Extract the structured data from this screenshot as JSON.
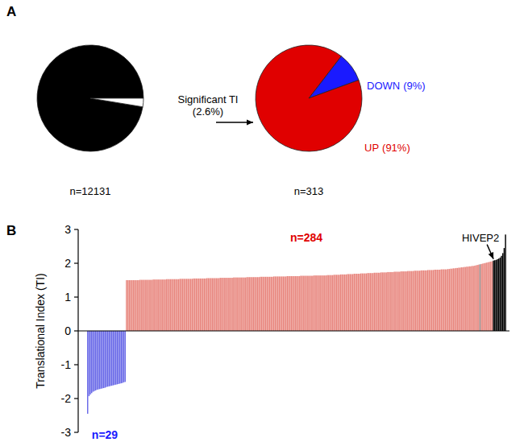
{
  "panel_labels": [
    "A",
    "B"
  ],
  "chart_data": [
    {
      "type": "pie",
      "categories": [
        null,
        "Significant TI"
      ],
      "values": [
        97.4,
        2.6
      ],
      "value_labels": [
        null,
        "(2.6%)"
      ],
      "colors": [
        "#000000",
        "#ffffff"
      ],
      "data_labels": true,
      "annotations": [
        "n=12131"
      ]
    },
    {
      "type": "pie",
      "categories": [
        "DOWN",
        "UP"
      ],
      "values": [
        9,
        91
      ],
      "value_labels": [
        "(9%)",
        "(91%)"
      ],
      "colors": [
        "#1a1aff",
        "#e00000"
      ],
      "data_labels": true,
      "annotations": [
        "n=313"
      ]
    },
    {
      "type": "bar",
      "ylabel": "Translational Index (TI)",
      "ylim": [
        -3,
        3
      ],
      "yticks": [
        -3,
        -2,
        -1,
        0,
        1,
        2,
        3
      ],
      "tick_labels": "y",
      "annotations": [
        {
          "text": "n=284"
        },
        {
          "text": "n=29"
        },
        {
          "text": "HIVEP2",
          "index": 303
        }
      ],
      "values": [
        -2.45,
        -1.93,
        -1.88,
        -1.84,
        -1.8,
        -1.78,
        -1.76,
        -1.74,
        -1.73,
        -1.72,
        -1.71,
        -1.7,
        -1.69,
        -1.68,
        -1.66,
        -1.65,
        -1.64,
        -1.63,
        -1.62,
        -1.61,
        -1.6,
        -1.59,
        -1.58,
        -1.57,
        -1.56,
        -1.55,
        -1.54,
        -1.52,
        -1.51,
        1.5,
        1.5,
        1.5,
        1.5,
        1.5,
        1.5,
        1.5,
        1.5,
        1.5,
        1.5,
        1.51,
        1.51,
        1.51,
        1.51,
        1.51,
        1.51,
        1.51,
        1.51,
        1.51,
        1.51,
        1.52,
        1.52,
        1.52,
        1.52,
        1.52,
        1.52,
        1.52,
        1.52,
        1.52,
        1.52,
        1.53,
        1.53,
        1.53,
        1.53,
        1.53,
        1.53,
        1.53,
        1.53,
        1.53,
        1.53,
        1.54,
        1.54,
        1.54,
        1.54,
        1.54,
        1.54,
        1.54,
        1.54,
        1.54,
        1.54,
        1.55,
        1.55,
        1.55,
        1.55,
        1.55,
        1.55,
        1.55,
        1.55,
        1.55,
        1.55,
        1.56,
        1.56,
        1.56,
        1.56,
        1.56,
        1.56,
        1.56,
        1.56,
        1.56,
        1.56,
        1.57,
        1.57,
        1.57,
        1.57,
        1.57,
        1.57,
        1.57,
        1.57,
        1.57,
        1.57,
        1.58,
        1.58,
        1.58,
        1.58,
        1.58,
        1.58,
        1.58,
        1.58,
        1.58,
        1.58,
        1.59,
        1.59,
        1.59,
        1.59,
        1.59,
        1.59,
        1.59,
        1.59,
        1.59,
        1.59,
        1.6,
        1.6,
        1.6,
        1.6,
        1.6,
        1.6,
        1.6,
        1.6,
        1.6,
        1.6,
        1.61,
        1.61,
        1.61,
        1.61,
        1.61,
        1.61,
        1.61,
        1.61,
        1.61,
        1.61,
        1.62,
        1.62,
        1.62,
        1.62,
        1.62,
        1.62,
        1.62,
        1.62,
        1.62,
        1.62,
        1.63,
        1.63,
        1.63,
        1.63,
        1.63,
        1.63,
        1.63,
        1.63,
        1.63,
        1.63,
        1.64,
        1.64,
        1.64,
        1.64,
        1.64,
        1.64,
        1.64,
        1.64,
        1.64,
        1.64,
        1.65,
        1.65,
        1.65,
        1.65,
        1.65,
        1.66,
        1.66,
        1.66,
        1.66,
        1.66,
        1.67,
        1.67,
        1.67,
        1.67,
        1.67,
        1.68,
        1.68,
        1.68,
        1.68,
        1.68,
        1.69,
        1.69,
        1.69,
        1.69,
        1.69,
        1.7,
        1.7,
        1.7,
        1.7,
        1.7,
        1.71,
        1.71,
        1.71,
        1.71,
        1.71,
        1.72,
        1.72,
        1.72,
        1.72,
        1.72,
        1.73,
        1.73,
        1.73,
        1.73,
        1.73,
        1.74,
        1.74,
        1.74,
        1.74,
        1.74,
        1.75,
        1.75,
        1.75,
        1.75,
        1.75,
        1.76,
        1.76,
        1.76,
        1.76,
        1.76,
        1.77,
        1.77,
        1.77,
        1.77,
        1.77,
        1.78,
        1.78,
        1.78,
        1.78,
        1.78,
        1.79,
        1.79,
        1.79,
        1.79,
        1.79,
        1.8,
        1.8,
        1.8,
        1.8,
        1.8,
        1.81,
        1.81,
        1.81,
        1.81,
        1.81,
        1.82,
        1.82,
        1.82,
        1.82,
        1.82,
        1.83,
        1.83,
        1.84,
        1.84,
        1.85,
        1.85,
        1.86,
        1.86,
        1.87,
        1.87,
        1.88,
        1.88,
        1.89,
        1.89,
        1.9,
        1.9,
        1.91,
        1.91,
        1.92,
        1.92,
        1.93,
        1.94,
        1.95,
        1.96,
        1.97,
        1.98,
        1.99,
        2.0,
        2.01,
        2.02,
        2.03,
        2.04,
        2.05,
        2.06,
        2.08,
        2.09,
        2.1,
        2.12,
        2.14,
        2.17,
        2.22,
        2.3,
        2.45,
        2.85
      ],
      "colors": [
        "#6b6be8",
        "#6b6be8",
        "#6b6be8",
        "#6b6be8",
        "#6b6be8",
        "#6b6be8",
        "#6b6be8",
        "#6b6be8",
        "#6b6be8",
        "#6b6be8",
        "#6b6be8",
        "#6b6be8",
        "#6b6be8",
        "#6b6be8",
        "#6b6be8",
        "#6b6be8",
        "#6b6be8",
        "#6b6be8",
        "#6b6be8",
        "#6b6be8",
        "#6b6be8",
        "#6b6be8",
        "#6b6be8",
        "#6b6be8",
        "#6b6be8",
        "#6b6be8",
        "#6b6be8",
        "#6b6be8",
        "#6b6be8",
        "#e8877f",
        "#e8877f",
        "#e8877f",
        "#e8877f",
        "#e8877f",
        "#e8877f",
        "#e8877f",
        "#e8877f",
        "#e8877f",
        "#e8877f",
        "#e8877f",
        "#e8877f",
        "#e8877f",
        "#e8877f",
        "#e8877f",
        "#e8877f",
        "#e8877f",
        "#e8877f",
        "#e8877f",
        "#e8877f",
        "#e8877f",
        "#e8877f",
        "#e8877f",
        "#e8877f",
        "#e8877f",
        "#e8877f",
        "#e8877f",
        "#e8877f",
        "#e8877f",
        "#e8877f",
        "#e8877f",
        "#e8877f",
        "#e8877f",
        "#e8877f",
        "#e8877f",
        "#e8877f",
        "#e8877f",
        "#e8877f",
        "#e8877f",
        "#e8877f",
        "#e8877f",
        "#e8877f",
        "#e8877f",
        "#e8877f",
        "#e8877f",
        "#e8877f",
        "#e8877f",
        "#e8877f",
        "#e8877f",
        "#e8877f",
        "#e8877f",
        "#e8877f",
        "#e8877f",
        "#e8877f",
        "#e8877f",
        "#e8877f",
        "#e8877f",
        "#e8877f",
        "#e8877f",
        "#e8877f",
        "#e8877f",
        "#e8877f",
        "#e8877f",
        "#e8877f",
        "#e8877f",
        "#e8877f",
        "#e8877f",
        "#e8877f",
        "#e8877f",
        "#e8877f",
        "#e8877f",
        "#e8877f",
        "#e8877f",
        "#e8877f",
        "#e8877f",
        "#e8877f",
        "#e8877f",
        "#e8877f",
        "#e8877f",
        "#e8877f",
        "#e8877f",
        "#e8877f",
        "#e8877f",
        "#e8877f",
        "#e8877f",
        "#e8877f",
        "#e8877f",
        "#e8877f",
        "#e8877f",
        "#e8877f",
        "#e8877f",
        "#e8877f",
        "#e8877f",
        "#e8877f",
        "#e8877f",
        "#e8877f",
        "#e8877f",
        "#e8877f",
        "#e8877f",
        "#e8877f",
        "#e8877f",
        "#e8877f",
        "#e8877f",
        "#e8877f",
        "#e8877f",
        "#e8877f",
        "#e8877f",
        "#e8877f",
        "#e8877f",
        "#e8877f",
        "#e8877f",
        "#e8877f",
        "#e8877f",
        "#e8877f",
        "#e8877f",
        "#e8877f",
        "#e8877f",
        "#e8877f",
        "#e8877f",
        "#e8877f",
        "#e8877f",
        "#e8877f",
        "#e8877f",
        "#e8877f",
        "#e8877f",
        "#e8877f",
        "#e8877f",
        "#e8877f",
        "#e8877f",
        "#e8877f",
        "#e8877f",
        "#e8877f",
        "#e8877f",
        "#e8877f",
        "#e8877f",
        "#e8877f",
        "#e8877f",
        "#e8877f",
        "#e8877f",
        "#e8877f",
        "#e8877f",
        "#e8877f",
        "#e8877f",
        "#e8877f",
        "#e8877f",
        "#e8877f",
        "#e8877f",
        "#e8877f",
        "#e8877f",
        "#e8877f",
        "#e8877f",
        "#e8877f",
        "#e8877f",
        "#e8877f",
        "#e8877f",
        "#e8877f",
        "#e8877f",
        "#e8877f",
        "#e8877f",
        "#e8877f",
        "#e8877f",
        "#e8877f",
        "#e8877f",
        "#e8877f",
        "#e8877f",
        "#e8877f",
        "#e8877f",
        "#e8877f",
        "#e8877f",
        "#e8877f",
        "#e8877f",
        "#e8877f",
        "#e8877f",
        "#e8877f",
        "#e8877f",
        "#e8877f",
        "#e8877f",
        "#e8877f",
        "#e8877f",
        "#e8877f",
        "#e8877f",
        "#e8877f",
        "#e8877f",
        "#e8877f",
        "#e8877f",
        "#e8877f",
        "#e8877f",
        "#e8877f",
        "#e8877f",
        "#e8877f",
        "#e8877f",
        "#e8877f",
        "#e8877f",
        "#e8877f",
        "#e8877f",
        "#e8877f",
        "#e8877f",
        "#e8877f",
        "#e8877f",
        "#e8877f",
        "#e8877f",
        "#e8877f",
        "#e8877f",
        "#e8877f",
        "#e8877f",
        "#e8877f",
        "#e8877f",
        "#e8877f",
        "#e8877f",
        "#e8877f",
        "#e8877f",
        "#e8877f",
        "#e8877f",
        "#e8877f",
        "#e8877f",
        "#e8877f",
        "#e8877f",
        "#e8877f",
        "#e8877f",
        "#e8877f",
        "#e8877f",
        "#e8877f",
        "#e8877f",
        "#e8877f",
        "#e8877f",
        "#e8877f",
        "#e8877f",
        "#e8877f",
        "#e8877f",
        "#e8877f",
        "#e8877f",
        "#e8877f",
        "#e8877f",
        "#e8877f",
        "#e8877f",
        "#e8877f",
        "#e8877f",
        "#e8877f",
        "#e8877f",
        "#e8877f",
        "#e8877f",
        "#e8877f",
        "#e8877f",
        "#e8877f",
        "#e8877f",
        "#e8877f",
        "#e8877f",
        "#e8877f",
        "#e8877f",
        "#e8877f",
        "#e8877f",
        "#e8877f",
        "#e8877f",
        "#e8877f",
        "#e8877f",
        "#e8877f",
        "#e8877f",
        "#e8877f",
        "#e8877f",
        "#e8877f",
        "#e8877f",
        "#e8877f",
        "#e8877f",
        "#e8877f",
        "#8c8c8c",
        "#e8877f",
        "#e8877f",
        "#e8877f",
        "#e8877f",
        "#e8877f",
        "#e8877f",
        "#e8877f",
        "#e8877f",
        "#e8877f"
      ]
    }
  ]
}
